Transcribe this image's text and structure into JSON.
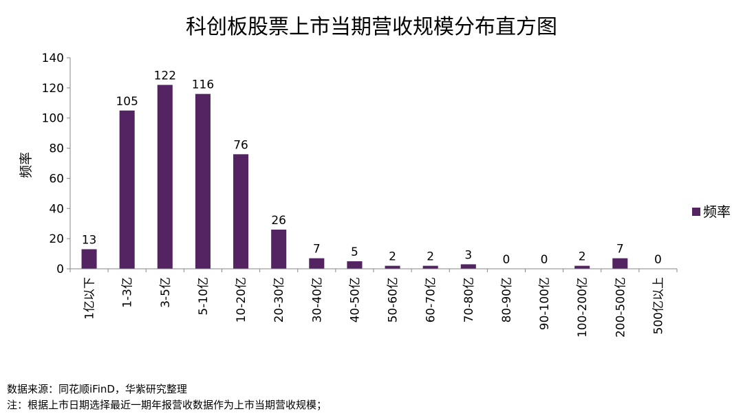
{
  "chart_data": {
    "type": "bar",
    "title": "科创板股票上市当期营收规模分布直方图",
    "ylabel": "频率",
    "xlabel": "",
    "ylim": [
      0,
      140
    ],
    "yticks": [
      0,
      20,
      40,
      60,
      80,
      100,
      120,
      140
    ],
    "grid": false,
    "legend_position": "right",
    "categories": [
      "1亿以下",
      "1-3亿",
      "3-5亿",
      "5-10亿",
      "10-20亿",
      "20-30亿",
      "30-40亿",
      "40-50亿",
      "50-60亿",
      "60-70亿",
      "70-80亿",
      "80-90亿",
      "90-100亿",
      "100-200亿",
      "200-500亿",
      "500亿以上"
    ],
    "series": [
      {
        "name": "频率",
        "values": [
          13,
          105,
          122,
          116,
          76,
          26,
          7,
          5,
          2,
          2,
          3,
          0,
          0,
          2,
          7,
          0
        ],
        "color": "#532461"
      }
    ]
  },
  "footer": {
    "source": "数据来源：同花顺iFinD，华紫研究整理",
    "note": "注：根据上市日期选择最近一期年报营收数据作为上市当期营收规模；"
  }
}
